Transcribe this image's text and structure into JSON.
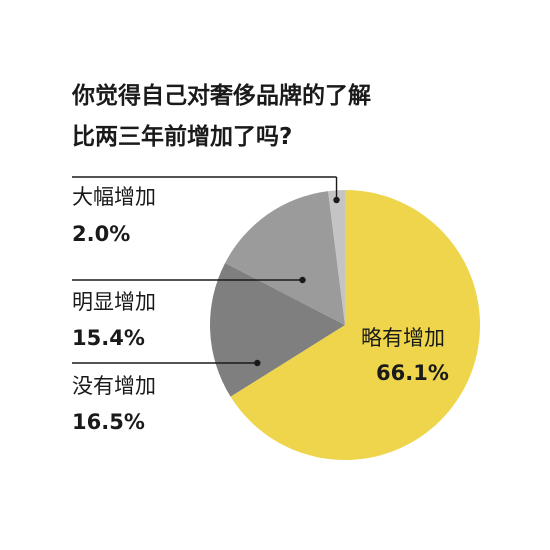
{
  "chart_data": {
    "type": "pie",
    "title_lines": [
      "你觉得自己对奢侈品牌的了解",
      "比两三年前增加了吗?"
    ],
    "slices": [
      {
        "label": "略有增加",
        "value": 66.1,
        "value_text": "66.1%",
        "color": "#eed54b"
      },
      {
        "label": "没有增加",
        "value": 16.5,
        "value_text": "16.5%",
        "color": "#7f7f7f"
      },
      {
        "label": "明显增加",
        "value": 15.4,
        "value_text": "15.4%",
        "color": "#9b9b9b"
      },
      {
        "label": "大幅增加",
        "value": 2.0,
        "value_text": "2.0%",
        "color": "#c4c4c4"
      }
    ]
  }
}
